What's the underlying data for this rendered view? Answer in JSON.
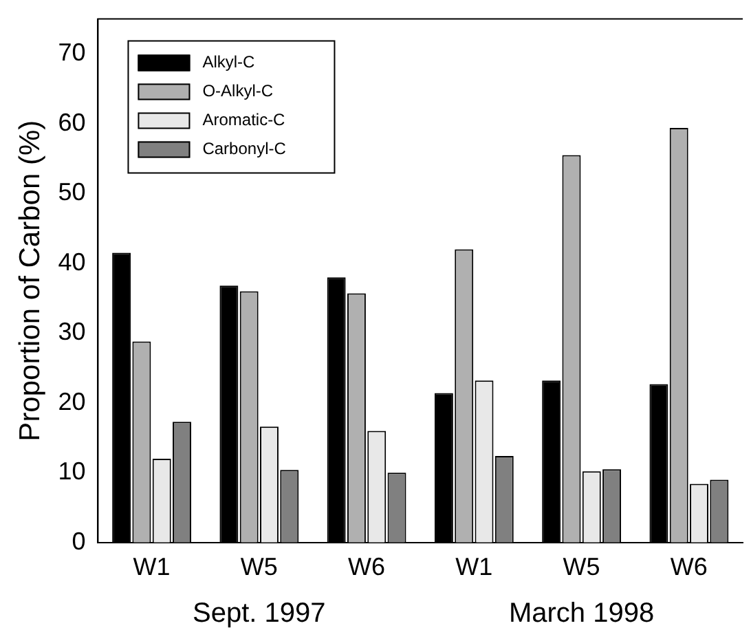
{
  "chart_data": {
    "type": "bar",
    "ylabel": "Proportion of Carbon (%)",
    "categories": [
      "W1",
      "W5",
      "W6",
      "W1",
      "W5",
      "W6"
    ],
    "series": [
      {
        "name": "Alkyl-C",
        "color": "#000000",
        "values": [
          41.5,
          36.8,
          38,
          21.4,
          23.2,
          22.7
        ]
      },
      {
        "name": "O-Alkyl-C",
        "color": "#b0b0b0",
        "values": [
          28.8,
          36,
          35.7,
          42,
          55.5,
          59.4
        ]
      },
      {
        "name": "Aromatic-C",
        "color": "#e8e8e8",
        "values": [
          12,
          16.6,
          16,
          23.2,
          10.2,
          8.4
        ]
      },
      {
        "name": "Carbonyl-C",
        "color": "#808080",
        "values": [
          17.3,
          10.4,
          10,
          12.4,
          10.5,
          9
        ]
      }
    ],
    "ylim": [
      0,
      75
    ],
    "yticks": [
      0,
      10,
      20,
      30,
      40,
      50,
      60,
      70
    ],
    "grid": false,
    "legend": "top left",
    "annotations": [
      "Sept. 1997",
      "March 1998"
    ]
  }
}
